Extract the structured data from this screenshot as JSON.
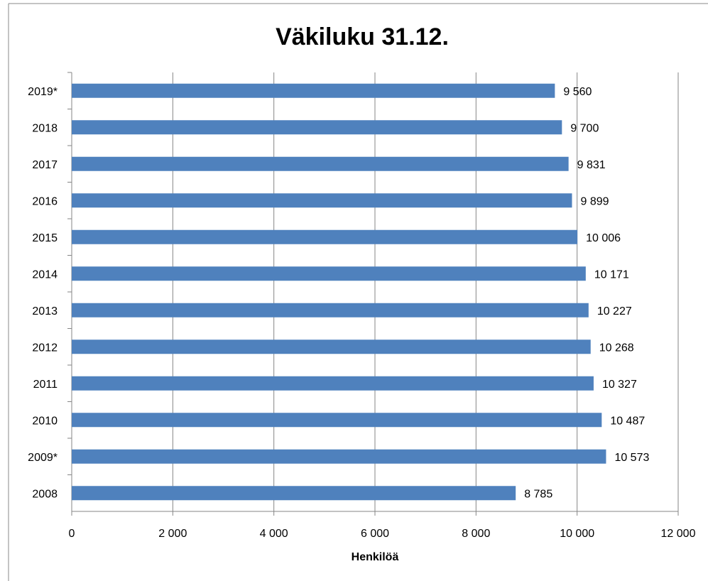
{
  "chart_data": {
    "type": "bar",
    "orientation": "horizontal",
    "title": "Väkiluku 31.12.",
    "x_label": "Henkilöä",
    "categories": [
      "2019*",
      "2018",
      "2017",
      "2016",
      "2015",
      "2014",
      "2013",
      "2012",
      "2011",
      "2010",
      "2009*",
      "2008"
    ],
    "values": [
      9560,
      9700,
      9831,
      9899,
      10006,
      10171,
      10227,
      10268,
      10327,
      10487,
      10573,
      8785
    ],
    "value_labels": [
      "9 560",
      "9 700",
      "9 831",
      "9 899",
      "10 006",
      "10 171",
      "10 227",
      "10 268",
      "10 327",
      "10 487",
      "10 573",
      "8 785"
    ],
    "color": "#4f81bd",
    "xlim": [
      0,
      12000
    ],
    "xticks": [
      0,
      {
        "value": 2000,
        "label": "2 000"
      },
      {
        "value": 4000,
        "label": "4 000"
      },
      {
        "value": 6000,
        "label": "6 000"
      },
      {
        "value": 8000,
        "label": "8 000"
      },
      {
        "value": 10000,
        "label": "10 000"
      },
      {
        "value": 12000,
        "label": "12 000"
      }
    ],
    "grid": true
  }
}
